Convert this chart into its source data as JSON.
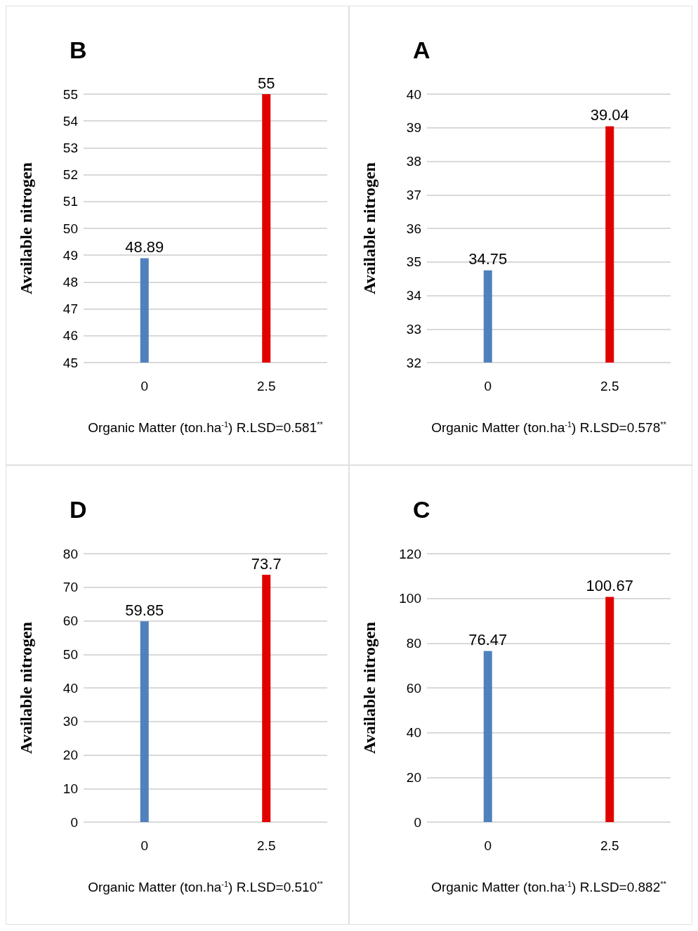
{
  "chart_data": [
    {
      "type": "bar",
      "title": "B",
      "ylabel": "Available nitrogen",
      "xlabel": "Organic Matter (ton.ha$^{-1}$) R.LSD=0.581$^{**}$",
      "categories": [
        "0",
        "2.5"
      ],
      "values": [
        48.89,
        55
      ],
      "colors": [
        "#4f81bd",
        "#e00000"
      ],
      "ylim": [
        45,
        55
      ],
      "yticks": [
        45,
        46,
        47,
        48,
        49,
        50,
        51,
        52,
        53,
        54,
        55
      ],
      "grid": "y",
      "data_labels": true
    },
    {
      "type": "bar",
      "title": "A",
      "ylabel": "Available nitrogen",
      "xlabel": "Organic Matter (ton.ha$^{-1}$) R.LSD=0.578$^{**}$",
      "categories": [
        "0",
        "2.5"
      ],
      "values": [
        34.75,
        39.04
      ],
      "colors": [
        "#4f81bd",
        "#e00000"
      ],
      "ylim": [
        32,
        40
      ],
      "yticks": [
        32,
        33,
        34,
        35,
        36,
        37,
        38,
        39,
        40
      ],
      "grid": "y",
      "data_labels": true
    },
    {
      "type": "bar",
      "title": "D",
      "ylabel": "Available nitrogen",
      "xlabel": "Organic Matter (ton.ha$^{-1}$) R.LSD=0.510$^{**}$",
      "categories": [
        "0",
        "2.5"
      ],
      "values": [
        59.85,
        73.7
      ],
      "colors": [
        "#4f81bd",
        "#e00000"
      ],
      "ylim": [
        0,
        80
      ],
      "yticks": [
        0,
        10,
        20,
        30,
        40,
        50,
        60,
        70,
        80
      ],
      "grid": "y",
      "data_labels": true
    },
    {
      "type": "bar",
      "title": "C",
      "ylabel": "Available nitrogen",
      "xlabel": "Organic Matter (ton.ha$^{-1}$) R.LSD=0.882$^{**}$",
      "categories": [
        "0",
        "2.5"
      ],
      "values": [
        76.47,
        100.67
      ],
      "colors": [
        "#4f81bd",
        "#e00000"
      ],
      "ylim": [
        0,
        120
      ],
      "yticks": [
        0,
        20,
        40,
        60,
        80,
        100,
        120
      ],
      "grid": "y",
      "data_labels": true
    }
  ]
}
